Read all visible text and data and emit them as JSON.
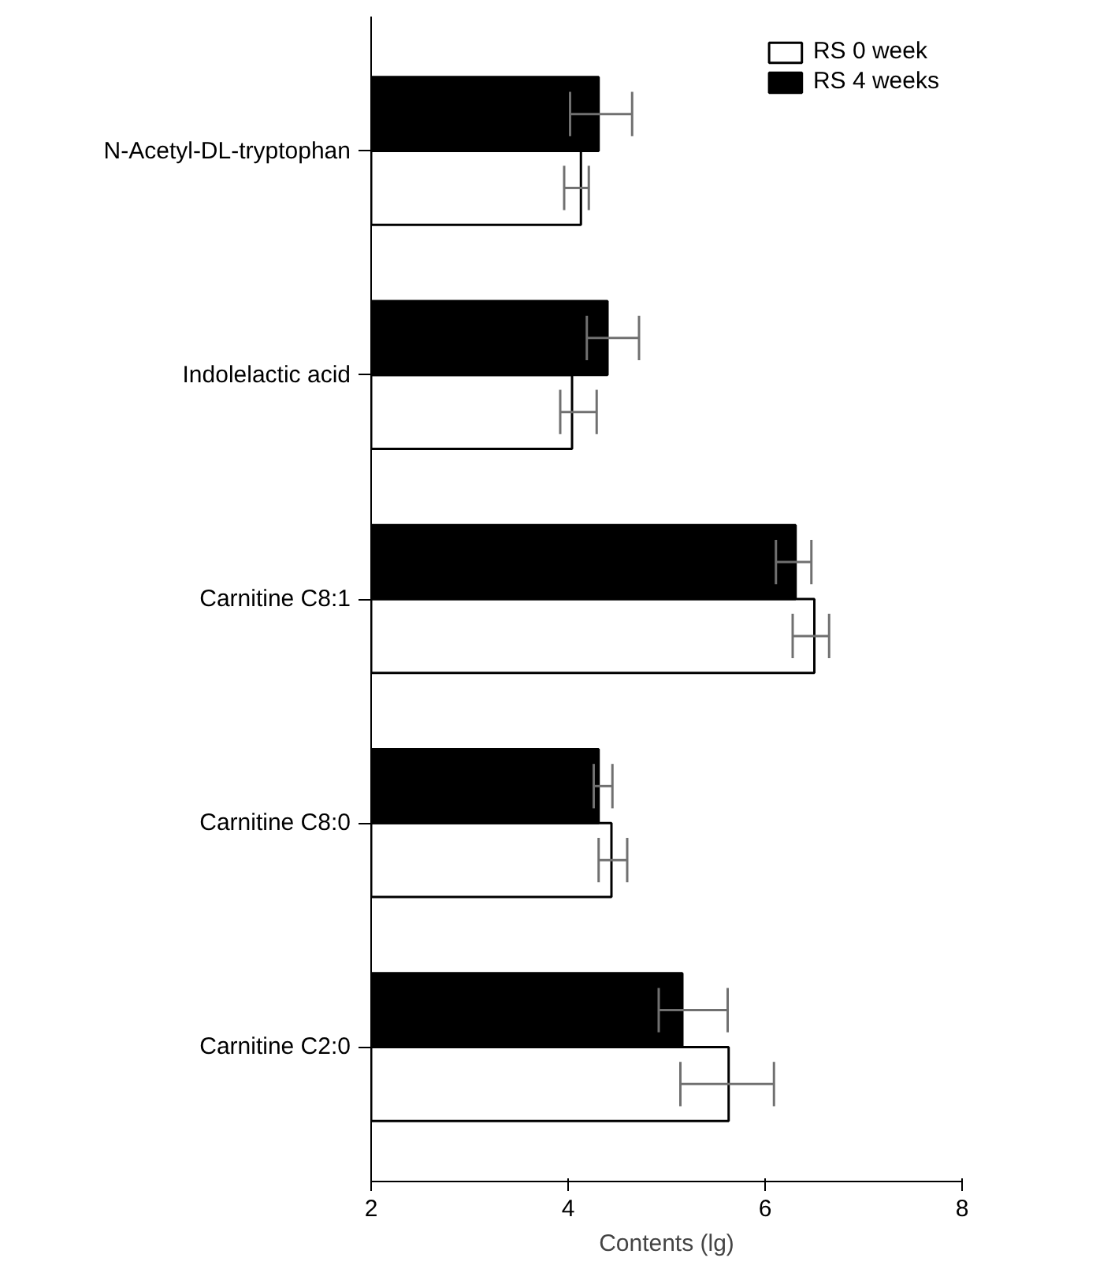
{
  "chart_data": {
    "type": "bar",
    "orientation": "horizontal",
    "xlabel": "Contents (lg)",
    "categories": [
      "N-Acetyl-DL-tryptophan",
      "Indolelactic acid",
      "Carnitine C8:1",
      "Carnitine C8:0",
      "Carnitine C2:0"
    ],
    "series": [
      {
        "name": "RS 0 week",
        "color": "#ffffff",
        "values": [
          4.13,
          4.04,
          6.5,
          4.44,
          5.63
        ],
        "errors": [
          [
            3.96,
            4.21
          ],
          [
            3.92,
            4.29
          ],
          [
            6.28,
            6.65
          ],
          [
            4.31,
            4.6
          ],
          [
            5.14,
            6.09
          ]
        ]
      },
      {
        "name": "RS 4 weeks",
        "color": "#000000",
        "values": [
          4.31,
          4.4,
          6.31,
          4.31,
          5.16
        ],
        "errors": [
          [
            4.02,
            4.65
          ],
          [
            4.19,
            4.72
          ],
          [
            6.11,
            6.47
          ],
          [
            4.26,
            4.45
          ],
          [
            4.92,
            5.62
          ]
        ]
      }
    ],
    "xlim": [
      2,
      8
    ],
    "xticks": [
      2,
      4,
      6,
      8
    ],
    "grid": false,
    "legend": "top right"
  }
}
